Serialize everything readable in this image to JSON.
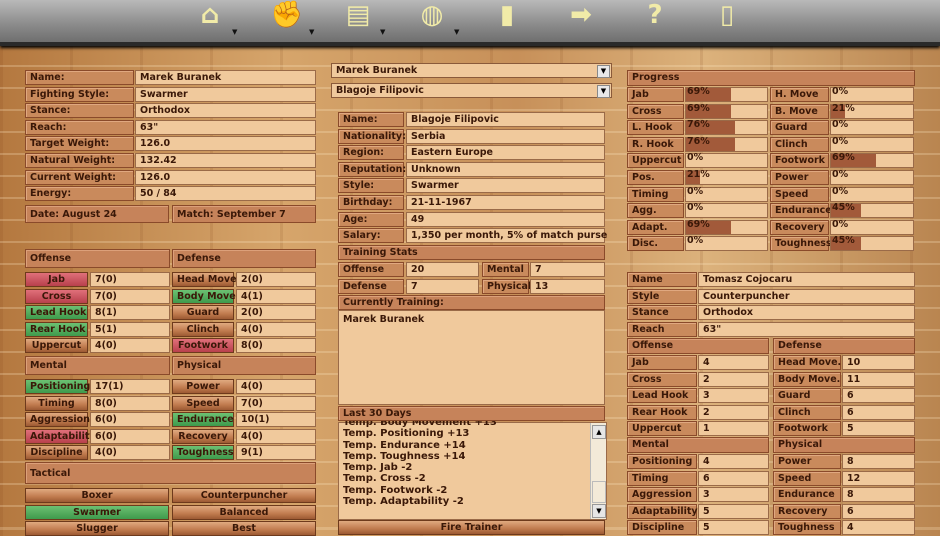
{
  "colors": {
    "green": "#4fa85a",
    "red": "#c8505a",
    "bar_fill": "#a25a3a"
  },
  "toolbar": {
    "icons": [
      {
        "name": "home-icon",
        "glyph": "⌂",
        "dropdown": true
      },
      {
        "name": "boxing-gloves-icon",
        "glyph": "✊",
        "dropdown": true
      },
      {
        "name": "notepad-icon",
        "glyph": "▤",
        "dropdown": true
      },
      {
        "name": "globe-icon",
        "glyph": "◍",
        "dropdown": true
      },
      {
        "name": "document-icon",
        "glyph": "▮",
        "dropdown": false
      },
      {
        "name": "arrow-right-icon",
        "glyph": "➡",
        "dropdown": false
      },
      {
        "name": "help-icon",
        "glyph": "?",
        "dropdown": false
      },
      {
        "name": "exit-door-icon",
        "glyph": "▯",
        "dropdown": false
      }
    ]
  },
  "fighter": {
    "fields": [
      {
        "label": "Name:",
        "value": "Marek Buranek"
      },
      {
        "label": "Fighting Style:",
        "value": "Swarmer"
      },
      {
        "label": "Stance:",
        "value": "Orthodox"
      },
      {
        "label": "Reach:",
        "value": "63\""
      },
      {
        "label": "Target Weight:",
        "value": "126.0"
      },
      {
        "label": "Natural Weight:",
        "value": "132.42"
      },
      {
        "label": "Current Weight:",
        "value": "126.0"
      },
      {
        "label": "Energy:",
        "value": "50 / 84"
      }
    ],
    "date": "Date: August 24",
    "match": "Match: September 7"
  },
  "skills": {
    "offense": {
      "title": "Offense",
      "items": [
        {
          "label": "Jab",
          "value": "7(0)",
          "status": "red"
        },
        {
          "label": "Cross",
          "value": "7(0)",
          "status": "red"
        },
        {
          "label": "Lead Hook",
          "value": "8(1)",
          "status": "green"
        },
        {
          "label": "Rear Hook",
          "value": "5(1)",
          "status": "green"
        },
        {
          "label": "Uppercut",
          "value": "4(0)",
          "status": "normal"
        }
      ]
    },
    "defense": {
      "title": "Defense",
      "items": [
        {
          "label": "Head Move.",
          "value": "2(0)",
          "status": "normal"
        },
        {
          "label": "Body Move.",
          "value": "4(1)",
          "status": "green"
        },
        {
          "label": "Guard",
          "value": "2(0)",
          "status": "normal"
        },
        {
          "label": "Clinch",
          "value": "4(0)",
          "status": "normal"
        },
        {
          "label": "Footwork",
          "value": "8(0)",
          "status": "red"
        }
      ]
    },
    "mental": {
      "title": "Mental",
      "items": [
        {
          "label": "Positioning",
          "value": "17(1)",
          "status": "green"
        },
        {
          "label": "Timing",
          "value": "8(0)",
          "status": "normal"
        },
        {
          "label": "Aggression",
          "value": "6(0)",
          "status": "normal"
        },
        {
          "label": "Adaptability",
          "value": "6(0)",
          "status": "red"
        },
        {
          "label": "Discipline",
          "value": "4(0)",
          "status": "normal"
        }
      ]
    },
    "physical": {
      "title": "Physical",
      "items": [
        {
          "label": "Power",
          "value": "4(0)",
          "status": "normal"
        },
        {
          "label": "Speed",
          "value": "7(0)",
          "status": "normal"
        },
        {
          "label": "Endurance",
          "value": "10(1)",
          "status": "green"
        },
        {
          "label": "Recovery",
          "value": "4(0)",
          "status": "normal"
        },
        {
          "label": "Toughness",
          "value": "9(1)",
          "status": "green"
        }
      ]
    }
  },
  "tactical": {
    "title": "Tactical",
    "options": [
      {
        "label": "Boxer",
        "selected": false
      },
      {
        "label": "Counterpuncher",
        "selected": false
      },
      {
        "label": "Swarmer",
        "selected": true
      },
      {
        "label": "Balanced",
        "selected": false
      },
      {
        "label": "Slugger",
        "selected": false
      },
      {
        "label": "Best",
        "selected": false
      }
    ]
  },
  "selectors": {
    "fighter": "Marek Buranek",
    "trainer": "Blagoje Filipovic"
  },
  "trainer": {
    "fields": [
      {
        "label": "Name:",
        "value": "Blagoje Filipovic"
      },
      {
        "label": "Nationality:",
        "value": "Serbia"
      },
      {
        "label": "Region:",
        "value": "Eastern Europe"
      },
      {
        "label": "Reputation:",
        "value": "Unknown"
      },
      {
        "label": "Style:",
        "value": "Swarmer"
      },
      {
        "label": "Birthday:",
        "value": "21-11-1967"
      },
      {
        "label": "Age:",
        "value": "49"
      },
      {
        "label": "Salary:",
        "value": "1,350 per month, 5% of match purse"
      }
    ],
    "training_stats_title": "Training Stats",
    "training_stats": [
      {
        "label": "Offense",
        "value": "20"
      },
      {
        "label": "Mental",
        "value": "7"
      },
      {
        "label": "Defense",
        "value": "7"
      },
      {
        "label": "Physical",
        "value": "13"
      }
    ],
    "currently_training_title": "Currently Training:",
    "currently_training": "Marek Buranek",
    "last30_title": "Last 30 Days",
    "last30": [
      "Temp. Body Movement +13",
      "Temp. Positioning +13",
      "Temp. Endurance +14",
      "Temp. Toughness +14",
      "Temp. Jab -2",
      "Temp. Cross -2",
      "Temp. Footwork -2",
      "Temp. Adaptability -2"
    ],
    "fire_button": "Fire Trainer"
  },
  "progress": {
    "title": "Progress",
    "items": [
      {
        "label": "Jab",
        "percent": 69
      },
      {
        "label": "H. Move",
        "percent": 0
      },
      {
        "label": "Cross",
        "percent": 69
      },
      {
        "label": "B. Move",
        "percent": 21
      },
      {
        "label": "L. Hook",
        "percent": 76
      },
      {
        "label": "Guard",
        "percent": 0
      },
      {
        "label": "R. Hook",
        "percent": 76
      },
      {
        "label": "Clinch",
        "percent": 0
      },
      {
        "label": "Uppercut",
        "percent": 0
      },
      {
        "label": "Footwork",
        "percent": 69
      },
      {
        "label": "Pos.",
        "percent": 21
      },
      {
        "label": "Power",
        "percent": 0
      },
      {
        "label": "Timing",
        "percent": 0
      },
      {
        "label": "Speed",
        "percent": 0
      },
      {
        "label": "Agg.",
        "percent": 0
      },
      {
        "label": "Endurance",
        "percent": 45
      },
      {
        "label": "Adapt.",
        "percent": 69
      },
      {
        "label": "Recovery",
        "percent": 0
      },
      {
        "label": "Disc.",
        "percent": 0
      },
      {
        "label": "Toughness",
        "percent": 45
      }
    ]
  },
  "opponent": {
    "fields": [
      {
        "label": "Name",
        "value": "Tomasz Cojocaru"
      },
      {
        "label": "Style",
        "value": "Counterpuncher"
      },
      {
        "label": "Stance",
        "value": "Orthodox"
      },
      {
        "label": "Reach",
        "value": "63\""
      }
    ],
    "offense": {
      "title": "Offense",
      "items": [
        {
          "label": "Jab",
          "value": "4"
        },
        {
          "label": "Cross",
          "value": "2"
        },
        {
          "label": "Lead Hook",
          "value": "3"
        },
        {
          "label": "Rear Hook",
          "value": "2"
        },
        {
          "label": "Uppercut",
          "value": "1"
        }
      ]
    },
    "defense": {
      "title": "Defense",
      "items": [
        {
          "label": "Head Move.",
          "value": "10"
        },
        {
          "label": "Body Move.",
          "value": "11"
        },
        {
          "label": "Guard",
          "value": "6"
        },
        {
          "label": "Clinch",
          "value": "6"
        },
        {
          "label": "Footwork",
          "value": "5"
        }
      ]
    },
    "mental": {
      "title": "Mental",
      "items": [
        {
          "label": "Positioning",
          "value": "4"
        },
        {
          "label": "Timing",
          "value": "6"
        },
        {
          "label": "Aggression",
          "value": "3"
        },
        {
          "label": "Adaptability",
          "value": "5"
        },
        {
          "label": "Discipline",
          "value": "5"
        }
      ]
    },
    "physical": {
      "title": "Physical",
      "items": [
        {
          "label": "Power",
          "value": "8"
        },
        {
          "label": "Speed",
          "value": "12"
        },
        {
          "label": "Endurance",
          "value": "8"
        },
        {
          "label": "Recovery",
          "value": "6"
        },
        {
          "label": "Toughness",
          "value": "4"
        }
      ]
    }
  }
}
